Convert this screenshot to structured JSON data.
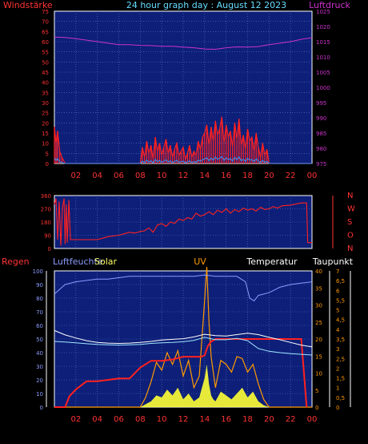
{
  "colors": {
    "background": "#000000",
    "plot_bg": "#0d1f78",
    "grid": "#5a78c8",
    "wind": "#ff2020",
    "pressure": "#cc33cc",
    "direction": "#ff2020",
    "rain": "#ff2020",
    "humidity": "#8a9cff",
    "solar": "#ffff33",
    "uv": "#ff9900",
    "temperature": "#ffffff",
    "dewpoint": "#a0e6ff",
    "axis_left": "#ff3333",
    "axis_right_top": "#cc33cc",
    "axis_right_bottom": "#ff9900"
  },
  "chart_data": [
    {
      "type": "line",
      "title": "24 hour graph day : August 12 2023",
      "ylabel": "Windstärke",
      "y2label": "Luftdruck",
      "ylim": [
        0,
        75
      ],
      "y2lim": [
        975,
        1025
      ],
      "xticks": [
        "02",
        "04",
        "06",
        "08",
        "10",
        "12",
        "14",
        "16",
        "18",
        "20",
        "22",
        "00"
      ],
      "yticks": [
        "75",
        "70",
        "65",
        "60",
        "55",
        "50",
        "45",
        "40",
        "35",
        "30",
        "25",
        "20",
        "15",
        "10",
        "5",
        "0"
      ],
      "y2ticks": [
        "1025",
        "1020",
        "1015",
        "1010",
        "1005",
        "1000",
        "995",
        "990",
        "985",
        "980",
        "975"
      ],
      "series": [
        {
          "name": "Windstärke",
          "x": [
            0,
            0.15,
            0.3,
            0.5,
            0.7,
            1.0,
            1.5,
            2,
            3,
            4,
            5,
            6,
            7,
            7.5,
            8,
            8.2,
            8.4,
            8.6,
            8.8,
            9,
            9.2,
            9.4,
            9.6,
            9.8,
            10,
            10.2,
            10.4,
            10.6,
            10.8,
            11,
            11.2,
            11.4,
            11.6,
            11.8,
            12,
            12.2,
            12.4,
            12.6,
            12.8,
            13,
            13.2,
            13.4,
            13.6,
            13.8,
            14,
            14.2,
            14.4,
            14.6,
            14.8,
            15,
            15.2,
            15.4,
            15.6,
            15.8,
            16,
            16.2,
            16.4,
            16.6,
            16.8,
            17,
            17.2,
            17.4,
            17.6,
            17.8,
            18,
            18.2,
            18.4,
            18.6,
            18.8,
            19,
            19.2,
            19.4,
            19.6,
            19.8,
            20,
            20.5,
            21,
            22,
            23,
            24
          ],
          "values": [
            18,
            10,
            16,
            6,
            3,
            0,
            0,
            0,
            0,
            0,
            0,
            0,
            0,
            0,
            0,
            8,
            3,
            11,
            5,
            9,
            2,
            13,
            6,
            10,
            4,
            8,
            12,
            5,
            9,
            3,
            7,
            10,
            4,
            6,
            8,
            2,
            5,
            9,
            3,
            6,
            4,
            11,
            7,
            13,
            15,
            19,
            9,
            18,
            11,
            21,
            14,
            17,
            23,
            10,
            19,
            13,
            16,
            8,
            20,
            12,
            22,
            9,
            14,
            7,
            17,
            11,
            13,
            6,
            15,
            8,
            3,
            10,
            4,
            7,
            0,
            0,
            0,
            0,
            0,
            0
          ]
        },
        {
          "name": "Luftdruck",
          "x": [
            0,
            1,
            2,
            3,
            4,
            5,
            6,
            7,
            8,
            9,
            10,
            11,
            12,
            13,
            14,
            15,
            16,
            17,
            18,
            19,
            20,
            21,
            22,
            23,
            24
          ],
          "values": [
            1016.5,
            1016.4,
            1016.0,
            1015.5,
            1015.0,
            1014.5,
            1014.0,
            1014.0,
            1013.8,
            1013.7,
            1013.5,
            1013.5,
            1013.2,
            1013.0,
            1012.6,
            1012.5,
            1013.0,
            1013.3,
            1013.2,
            1013.4,
            1014.0,
            1014.5,
            1015.0,
            1015.8,
            1016.3
          ]
        }
      ]
    },
    {
      "type": "line",
      "ylim": [
        0,
        360
      ],
      "yticks": [
        "360",
        "270",
        "180",
        "90",
        "0"
      ],
      "y2ticks": [
        "N",
        "W",
        "S",
        "O",
        "N"
      ],
      "series": [
        {
          "x": [
            0,
            0.15,
            0.3,
            0.45,
            0.6,
            0.75,
            0.9,
            1.0,
            1.1,
            1.2,
            1.35,
            1.5,
            2,
            3,
            4,
            5,
            6,
            6.5,
            7,
            7.5,
            8,
            8.4,
            8.8,
            9.2,
            9.6,
            10,
            10.4,
            10.8,
            11.2,
            11.6,
            12,
            12.4,
            12.8,
            13.2,
            13.6,
            14,
            14.4,
            14.8,
            15.2,
            15.6,
            16,
            16.4,
            16.8,
            17.2,
            17.6,
            18,
            18.4,
            18.8,
            19.2,
            19.6,
            20,
            20.4,
            20.8,
            21.2,
            22,
            23,
            23.5,
            23.6,
            24
          ],
          "values": [
            300,
            340,
            60,
            320,
            20,
            280,
            340,
            30,
            300,
            40,
            330,
            60,
            60,
            60,
            60,
            80,
            90,
            100,
            110,
            105,
            115,
            120,
            140,
            110,
            160,
            170,
            150,
            180,
            170,
            200,
            190,
            210,
            200,
            240,
            220,
            230,
            250,
            230,
            260,
            245,
            270,
            240,
            265,
            250,
            275,
            260,
            270,
            255,
            280,
            265,
            270,
            285,
            275,
            290,
            295,
            310,
            310,
            40,
            40
          ]
        }
      ]
    },
    {
      "type": "line",
      "yticks": [
        "100",
        "90",
        "80",
        "70",
        "60",
        "50",
        "40",
        "30",
        "20",
        "10",
        "0"
      ],
      "y2ticks": [
        "40",
        "35",
        "30",
        "25",
        "20",
        "15",
        "10",
        "5",
        "0"
      ],
      "y3ticks": [
        "7",
        "6,5",
        "6",
        "5,5",
        "5",
        "4,5",
        "4",
        "3,5",
        "3",
        "2,5",
        "2",
        "1,5",
        "1",
        "0,5",
        "0"
      ],
      "series": [
        {
          "name": "Regen",
          "x": [
            0,
            1,
            1.4,
            2,
            3,
            4,
            5,
            6,
            7,
            8,
            9,
            10,
            11,
            12,
            13,
            13.7,
            14,
            14.3,
            14.6,
            15,
            16,
            17,
            18,
            19,
            20,
            21,
            22,
            23,
            23.5
          ],
          "values": [
            0,
            0,
            8,
            13,
            19,
            19,
            20,
            21,
            21,
            29,
            34,
            34,
            35,
            37,
            37,
            37,
            38,
            45,
            48,
            50,
            50,
            50,
            50,
            50,
            50,
            50,
            50,
            50,
            0
          ]
        },
        {
          "name": "Luftfeuchte",
          "x": [
            0,
            1,
            2,
            3,
            4,
            5,
            6,
            7,
            8,
            9,
            10,
            11,
            12,
            13,
            14,
            15,
            16,
            17,
            17.8,
            18.2,
            18.6,
            19,
            20,
            21,
            22,
            23,
            24
          ],
          "values": [
            83,
            90,
            92,
            93,
            94,
            94,
            95,
            96,
            96,
            96,
            96,
            96,
            96,
            96,
            97,
            96,
            96,
            96,
            92,
            80,
            78,
            82,
            84,
            88,
            90,
            91,
            92
          ]
        },
        {
          "name": "Temperatur",
          "x": [
            0,
            1,
            2,
            3,
            4,
            5,
            6,
            7,
            8,
            9,
            10,
            11,
            12,
            13,
            14,
            15,
            16,
            17,
            18,
            19,
            20,
            21,
            22,
            23,
            24
          ],
          "values": [
            22.5,
            21.2,
            20.3,
            19.5,
            19.0,
            18.8,
            18.7,
            18.8,
            19.0,
            19.3,
            19.7,
            19.9,
            20.1,
            20.6,
            21.4,
            21.0,
            20.9,
            21.3,
            21.7,
            21.3,
            20.5,
            19.8,
            19.0,
            18.2,
            17.7
          ]
        },
        {
          "name": "Taupunkt",
          "x": [
            0,
            1,
            2,
            3,
            4,
            5,
            6,
            7,
            8,
            9,
            10,
            11,
            12,
            13,
            14,
            15,
            16,
            17,
            18,
            19,
            20,
            21,
            22,
            23,
            24
          ],
          "values": [
            19.3,
            19.1,
            18.9,
            18.6,
            18.4,
            18.3,
            18.2,
            18.3,
            18.4,
            18.7,
            18.9,
            19.0,
            19.2,
            19.6,
            20.5,
            19.8,
            19.8,
            20.2,
            19.5,
            17.2,
            16.4,
            16.0,
            15.7,
            15.5,
            15.3
          ]
        },
        {
          "name": "Solar",
          "x": [
            0,
            8,
            8.5,
            9,
            9.5,
            10,
            10.5,
            11,
            11.5,
            12,
            12.5,
            13,
            13.5,
            14,
            14.2,
            14.4,
            14.6,
            14.8,
            15,
            15.5,
            16,
            16.5,
            17,
            17.5,
            18,
            18.5,
            19,
            19.5,
            20,
            24
          ],
          "values": [
            0,
            0,
            1.5,
            3,
            6,
            5,
            9,
            6,
            10,
            4,
            7,
            3,
            5,
            15,
            22,
            12,
            6,
            4,
            3,
            8,
            6,
            4,
            7,
            10,
            5,
            8,
            3,
            1,
            0,
            0
          ]
        },
        {
          "name": "UV",
          "x": [
            0,
            8,
            8.5,
            9,
            9.5,
            10,
            10.5,
            11,
            11.5,
            12,
            12.5,
            13,
            13.5,
            14,
            14.2,
            14.4,
            14.6,
            14.8,
            15,
            15.5,
            16,
            16.5,
            17,
            17.5,
            18,
            18.5,
            19,
            19.5,
            20,
            24
          ],
          "values": [
            0,
            0,
            0.5,
            1.3,
            2.3,
            1.9,
            2.8,
            2.2,
            2.9,
            1.6,
            2.4,
            1.0,
            1.6,
            5.5,
            7.2,
            4.4,
            2.6,
            1.8,
            1.0,
            2.4,
            2.2,
            1.8,
            2.6,
            2.5,
            1.8,
            2.2,
            1.2,
            0.4,
            0,
            0
          ]
        }
      ]
    }
  ],
  "labels": {
    "title": "24 hour graph day : August 12 2023",
    "p1_left": "Windstärke",
    "p1_right": "Luftdruck",
    "p3_regen": "Regen",
    "p3_feuchte": "Luftfeuchte",
    "p3_solar": "Solar",
    "p3_uv": "UV",
    "p3_temp": "Temperatur",
    "p3_taupunkt": "Taupunkt"
  }
}
